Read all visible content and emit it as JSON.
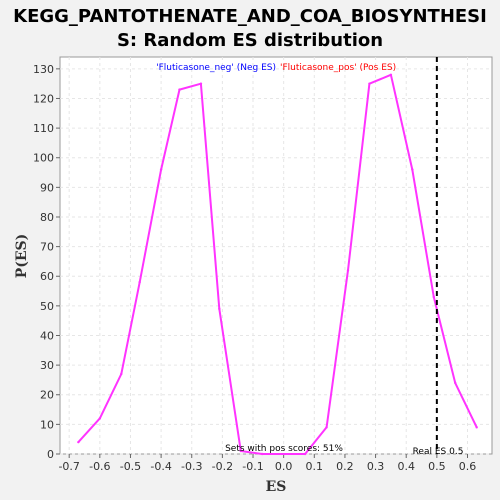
{
  "chart_data": {
    "type": "line",
    "title_line1": "KEGG_PANTOTHENATE_AND_COA_BIOSYNTHESI",
    "title_line2": "S: Random ES distribution",
    "xlabel": "ES",
    "ylabel": "P(ES)",
    "xlim": [
      -0.73,
      0.68
    ],
    "ylim": [
      0,
      134
    ],
    "xticks": [
      -0.7,
      -0.6,
      -0.5,
      -0.4,
      -0.3,
      -0.2,
      -0.1,
      0.0,
      0.1,
      0.2,
      0.3,
      0.4,
      0.5,
      0.6
    ],
    "xtick_labels": [
      "-0.7",
      "-0.6",
      "-0.5",
      "-0.4",
      "-0.3",
      "-0.2",
      "-0.1",
      "0.0",
      "0.1",
      "0.2",
      "0.3",
      "0.4",
      "0.5",
      "0.6"
    ],
    "yticks": [
      0,
      10,
      20,
      30,
      40,
      50,
      60,
      70,
      80,
      90,
      100,
      110,
      120,
      130
    ],
    "ytick_labels": [
      "0",
      "10",
      "20",
      "30",
      "40",
      "50",
      "60",
      "70",
      "80",
      "90",
      "100",
      "110",
      "120",
      "130"
    ],
    "grid": true,
    "legend": [
      {
        "text": "'Fluticasone_neg' (Neg ES)",
        "color": "#0000ff"
      },
      {
        "text": "'Fluticasone_pos' (Pos ES)",
        "color": "#ff0000"
      }
    ],
    "series": [
      {
        "color": "#ff33ff",
        "x": [
          -0.67,
          -0.6,
          -0.53,
          -0.47,
          -0.4,
          -0.34,
          -0.27,
          -0.21,
          -0.14,
          -0.07,
          0.07,
          0.14,
          0.21,
          0.28,
          0.35,
          0.42,
          0.49,
          0.56,
          0.63
        ],
        "y": [
          4,
          12,
          27,
          58,
          96,
          123,
          125,
          49,
          1,
          0,
          0,
          9,
          62,
          125,
          128,
          96,
          53,
          24,
          9
        ]
      }
    ],
    "real_es": 0.5,
    "real_es_label": "Real ES 0.5",
    "pos_scores_label": "Sets with pos scores: 51%"
  }
}
